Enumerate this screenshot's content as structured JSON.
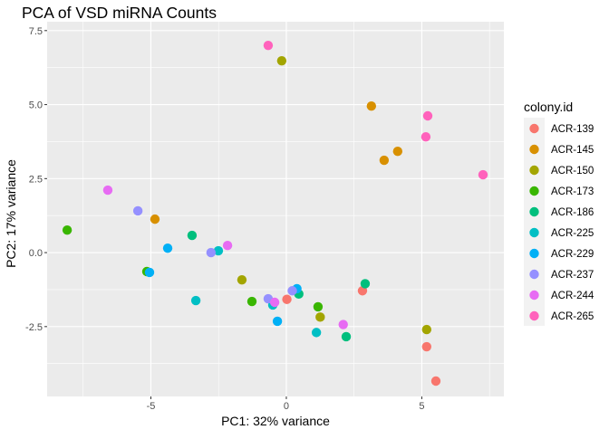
{
  "chart_data": {
    "type": "scatter",
    "title": "PCA of VSD miRNA Counts",
    "xlabel": "PC1: 32% variance",
    "ylabel": "PC2: 17% variance",
    "xlim": [
      -8.83,
      8.03
    ],
    "ylim": [
      -4.86,
      7.8
    ],
    "x_ticks": [
      -5,
      0,
      5
    ],
    "y_ticks": [
      -2.5,
      0.0,
      2.5,
      5.0,
      7.5
    ],
    "x_tick_labels": [
      "-5",
      "0",
      "5"
    ],
    "y_tick_labels": [
      "-2.5",
      "0.0",
      "2.5",
      "5.0",
      "7.5"
    ],
    "grid": true,
    "legend": {
      "title": "colony.id",
      "placement": "right"
    },
    "series": [
      {
        "name": "ACR-139",
        "color": "#F8766D",
        "points": [
          [
            0.02,
            -1.58
          ],
          [
            2.81,
            -1.29
          ],
          [
            5.18,
            -3.18
          ],
          [
            5.52,
            -4.34
          ]
        ]
      },
      {
        "name": "ACR-145",
        "color": "#D89000",
        "points": [
          [
            3.14,
            4.95
          ],
          [
            4.11,
            3.42
          ],
          [
            3.61,
            3.12
          ],
          [
            -4.85,
            1.13
          ]
        ]
      },
      {
        "name": "ACR-150",
        "color": "#A3A500",
        "points": [
          [
            -0.17,
            6.48
          ],
          [
            -1.64,
            -0.92
          ],
          [
            1.25,
            -2.18
          ],
          [
            5.18,
            -2.6
          ]
        ]
      },
      {
        "name": "ACR-173",
        "color": "#39B600",
        "points": [
          [
            -8.09,
            0.76
          ],
          [
            -5.15,
            -0.64
          ],
          [
            -1.27,
            -1.65
          ],
          [
            1.17,
            -1.83
          ]
        ]
      },
      {
        "name": "ACR-186",
        "color": "#00BF7D",
        "points": [
          [
            -3.48,
            0.58
          ],
          [
            0.46,
            -1.4
          ],
          [
            2.91,
            -1.05
          ],
          [
            2.21,
            -2.84
          ]
        ]
      },
      {
        "name": "ACR-225",
        "color": "#00BFC4",
        "points": [
          [
            -2.51,
            0.06
          ],
          [
            -3.34,
            -1.62
          ],
          [
            -0.5,
            -1.77
          ],
          [
            1.11,
            -2.7
          ]
        ]
      },
      {
        "name": "ACR-229",
        "color": "#00B0F6",
        "points": [
          [
            -4.38,
            0.15
          ],
          [
            -5.05,
            -0.67
          ],
          [
            -0.33,
            -2.32
          ],
          [
            0.39,
            -1.22
          ]
        ]
      },
      {
        "name": "ACR-237",
        "color": "#9590FF",
        "points": [
          [
            -5.48,
            1.41
          ],
          [
            -2.78,
            0.0
          ],
          [
            -0.67,
            -1.56
          ],
          [
            0.22,
            -1.29
          ]
        ]
      },
      {
        "name": "ACR-244",
        "color": "#E76BF3",
        "points": [
          [
            -6.59,
            2.11
          ],
          [
            -2.17,
            0.24
          ],
          [
            -0.43,
            -1.68
          ],
          [
            2.1,
            -2.43
          ]
        ]
      },
      {
        "name": "ACR-265",
        "color": "#FF62BC",
        "points": [
          [
            -0.67,
            7.0
          ],
          [
            5.22,
            4.62
          ],
          [
            5.15,
            3.91
          ],
          [
            7.26,
            2.63
          ]
        ]
      }
    ]
  }
}
